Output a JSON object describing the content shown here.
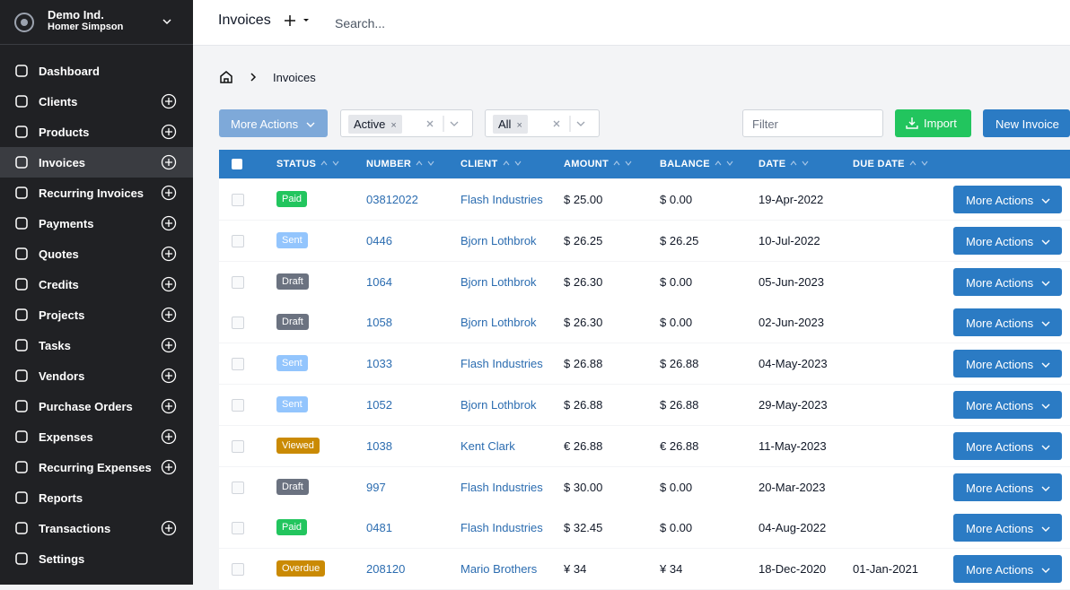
{
  "sidebar": {
    "company": "Demo Ind.",
    "user": "Homer Simpson",
    "nav": [
      {
        "label": "Dashboard",
        "add": false,
        "active": false
      },
      {
        "label": "Clients",
        "add": true,
        "active": false
      },
      {
        "label": "Products",
        "add": true,
        "active": false
      },
      {
        "label": "Invoices",
        "add": true,
        "active": true
      },
      {
        "label": "Recurring Invoices",
        "add": true,
        "active": false
      },
      {
        "label": "Payments",
        "add": true,
        "active": false
      },
      {
        "label": "Quotes",
        "add": true,
        "active": false
      },
      {
        "label": "Credits",
        "add": true,
        "active": false
      },
      {
        "label": "Projects",
        "add": true,
        "active": false
      },
      {
        "label": "Tasks",
        "add": true,
        "active": false
      },
      {
        "label": "Vendors",
        "add": true,
        "active": false
      },
      {
        "label": "Purchase Orders",
        "add": true,
        "active": false
      },
      {
        "label": "Expenses",
        "add": true,
        "active": false
      },
      {
        "label": "Recurring Expenses",
        "add": true,
        "active": false
      },
      {
        "label": "Reports",
        "add": false,
        "active": false
      },
      {
        "label": "Transactions",
        "add": true,
        "active": false
      },
      {
        "label": "Settings",
        "add": false,
        "active": false
      }
    ]
  },
  "topbar": {
    "title": "Invoices",
    "search": "Search..."
  },
  "breadcrumb": {
    "current": "Invoices"
  },
  "toolbar": {
    "bulk": "More Actions",
    "status_filter": "Active",
    "client_filter": "All",
    "filter": "Filter",
    "import": "Import",
    "new": "New Invoice"
  },
  "table": {
    "columns": [
      "STATUS",
      "NUMBER",
      "CLIENT",
      "AMOUNT",
      "BALANCE",
      "DATE",
      "DUE DATE"
    ],
    "row_action": "More Actions",
    "rows": [
      [
        "Paid",
        "03812022",
        "Flash Industries",
        "$ 25.00",
        "$ 0.00",
        "19-Apr-2022",
        null
      ],
      [
        "Sent",
        "0446",
        "Bjorn Lothbrok",
        "$ 26.25",
        "$ 26.25",
        "10-Jul-2022",
        null
      ],
      [
        "Draft",
        "1064",
        "Bjorn Lothbrok",
        "$ 26.30",
        "$ 0.00",
        "05-Jun-2023",
        null
      ],
      [
        "Draft",
        "1058",
        "Bjorn Lothbrok",
        "$ 26.30",
        "$ 0.00",
        "02-Jun-2023",
        null
      ],
      [
        "Sent",
        "1033",
        "Flash Industries",
        "$ 26.88",
        "$ 26.88",
        "04-May-2023",
        null
      ],
      [
        "Sent",
        "1052",
        "Bjorn Lothbrok",
        "$ 26.88",
        "$ 26.88",
        "29-May-2023",
        null
      ],
      [
        "Viewed",
        "1038",
        "Kent Clark",
        "€ 26.88",
        "€ 26.88",
        "11-May-2023",
        null
      ],
      [
        "Draft",
        "997",
        "Flash Industries",
        "$ 30.00",
        "$ 0.00",
        "20-Mar-2023",
        null
      ],
      [
        "Paid",
        "0481",
        "Flash Industries",
        "$ 32.45",
        "$ 0.00",
        "04-Aug-2022",
        null
      ],
      [
        "Overdue",
        "208120",
        "Mario Brothers",
        "¥ 34",
        "¥ 34",
        "18-Dec-2020",
        "01-Jan-2021"
      ]
    ]
  }
}
